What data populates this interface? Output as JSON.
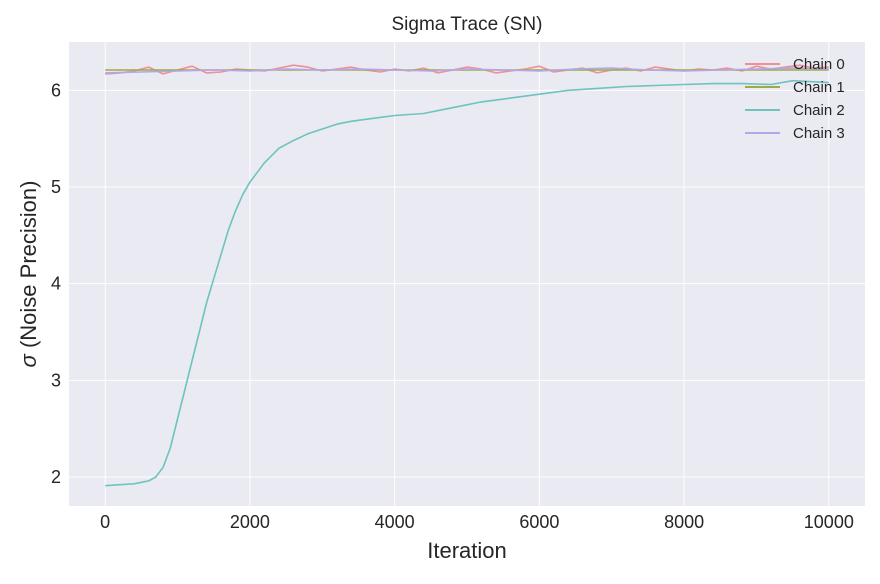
{
  "chart_data": {
    "type": "line",
    "title": "Sigma Trace (SN)",
    "xlabel": "Iteration",
    "ylabel_symbol": "σ",
    "ylabel_text": " (Noise Precision)",
    "xlim": [
      -500,
      10500
    ],
    "ylim": [
      1.7,
      6.5
    ],
    "xticks": [
      0,
      2000,
      4000,
      6000,
      8000,
      10000
    ],
    "yticks": [
      2,
      3,
      4,
      5,
      6
    ],
    "grid": true,
    "legend_position": "top-right",
    "series": [
      {
        "name": "Chain 0",
        "color": "#f28e99",
        "x": [
          0,
          200,
          400,
          600,
          800,
          1000,
          1200,
          1400,
          1600,
          1800,
          2000,
          2200,
          2400,
          2600,
          2800,
          3000,
          3200,
          3400,
          3600,
          3800,
          4000,
          4200,
          4400,
          4600,
          4800,
          5000,
          5200,
          5400,
          5600,
          5800,
          6000,
          6200,
          6400,
          6600,
          6800,
          7000,
          7200,
          7400,
          7600,
          7800,
          8000,
          8200,
          8400,
          8600,
          8800,
          9000,
          9200,
          9400,
          9600,
          9800,
          10000
        ],
        "values": [
          6.17,
          6.18,
          6.2,
          6.24,
          6.17,
          6.21,
          6.25,
          6.18,
          6.19,
          6.22,
          6.21,
          6.2,
          6.23,
          6.26,
          6.24,
          6.2,
          6.22,
          6.24,
          6.21,
          6.19,
          6.22,
          6.2,
          6.23,
          6.18,
          6.21,
          6.24,
          6.22,
          6.18,
          6.2,
          6.22,
          6.25,
          6.19,
          6.21,
          6.23,
          6.18,
          6.21,
          6.23,
          6.2,
          6.24,
          6.22,
          6.2,
          6.22,
          6.21,
          6.23,
          6.2,
          6.25,
          6.22,
          6.24,
          6.26,
          6.23,
          6.24
        ]
      },
      {
        "name": "Chain 1",
        "color": "#9bab47",
        "x": [
          0,
          10000
        ],
        "values": [
          6.21,
          6.21
        ]
      },
      {
        "name": "Chain 2",
        "color": "#6ec3bd",
        "x": [
          0,
          200,
          400,
          600,
          700,
          800,
          900,
          1000,
          1100,
          1200,
          1300,
          1400,
          1500,
          1600,
          1700,
          1800,
          1900,
          2000,
          2200,
          2400,
          2600,
          2800,
          3000,
          3200,
          3400,
          3600,
          3800,
          4000,
          4400,
          4800,
          5200,
          5600,
          6000,
          6400,
          6800,
          7200,
          7600,
          8000,
          8400,
          8800,
          9200,
          9500,
          10000
        ],
        "values": [
          1.91,
          1.92,
          1.93,
          1.96,
          2.0,
          2.1,
          2.3,
          2.6,
          2.9,
          3.2,
          3.5,
          3.8,
          4.05,
          4.3,
          4.55,
          4.75,
          4.92,
          5.05,
          5.25,
          5.4,
          5.48,
          5.55,
          5.6,
          5.65,
          5.68,
          5.7,
          5.72,
          5.74,
          5.76,
          5.82,
          5.88,
          5.92,
          5.96,
          6.0,
          6.02,
          6.04,
          6.05,
          6.06,
          6.07,
          6.07,
          6.06,
          6.1,
          6.08
        ]
      },
      {
        "name": "Chain 3",
        "color": "#b3a7e8",
        "x": [
          0,
          500,
          1000,
          1500,
          2000,
          2500,
          3000,
          3500,
          4000,
          4500,
          5000,
          5500,
          6000,
          6500,
          7000,
          7500,
          8000,
          8500,
          9000,
          9500,
          10000
        ],
        "values": [
          6.18,
          6.19,
          6.2,
          6.21,
          6.2,
          6.22,
          6.21,
          6.22,
          6.21,
          6.2,
          6.22,
          6.21,
          6.2,
          6.22,
          6.23,
          6.21,
          6.2,
          6.21,
          6.22,
          6.23,
          6.22
        ]
      }
    ]
  }
}
